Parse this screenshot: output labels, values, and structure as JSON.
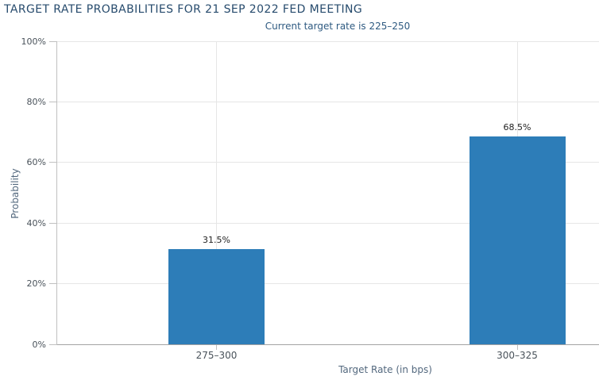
{
  "chart_data": {
    "type": "bar",
    "title": "TARGET RATE PROBABILITIES FOR 21 SEP 2022 FED MEETING",
    "subtitle": "Current target rate is 225–250",
    "categories": [
      "275–300",
      "300–325"
    ],
    "values": [
      31.5,
      68.5
    ],
    "data_labels": [
      "31.5%",
      "68.5%"
    ],
    "xlabel": "Target Rate (in bps)",
    "ylabel": "Probability",
    "ylim": [
      0,
      100
    ],
    "yticks": [
      0,
      20,
      40,
      60,
      80,
      100
    ],
    "ytick_labels": [
      "0%",
      "20%",
      "40%",
      "60%",
      "80%",
      "100%"
    ],
    "grid": true,
    "legend": false,
    "colors": {
      "bar": "#2d7db8",
      "title": "#274b6d",
      "subtitle": "#2e5a81",
      "axis_title": "#53687e",
      "tick_label": "#49525a",
      "data_label": "#222222",
      "gridline": "#e6e6e6",
      "axis_line": "#c0c0c0",
      "baseline": "#a3a3a3"
    }
  }
}
